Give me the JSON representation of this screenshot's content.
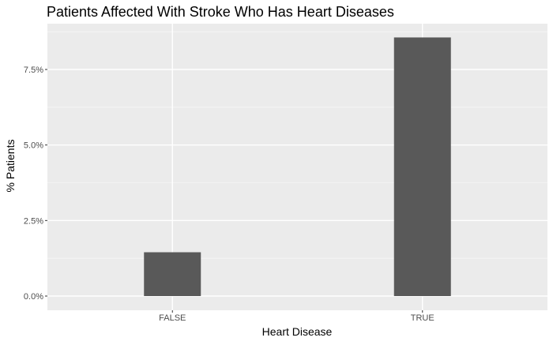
{
  "chart_data": {
    "type": "bar",
    "title": "Patients Affected With Stroke Who Has Heart Diseases",
    "xlabel": "Heart Disease",
    "ylabel": "% Patients",
    "categories": [
      "FALSE",
      "TRUE"
    ],
    "values": [
      1.45,
      8.56
    ],
    "unit": "%",
    "ylim": [
      0,
      9.0
    ],
    "yticks": [
      0,
      2.5,
      5.0,
      7.5
    ],
    "ytick_labels": [
      "0.0%",
      "2.5%",
      "5.0%",
      "7.5%"
    ],
    "grid": true,
    "legend": "none",
    "colors": {
      "bar": "#595959",
      "panel": "#ebebeb",
      "grid_major": "#ffffff",
      "grid_minor": "#f5f5f5"
    }
  }
}
